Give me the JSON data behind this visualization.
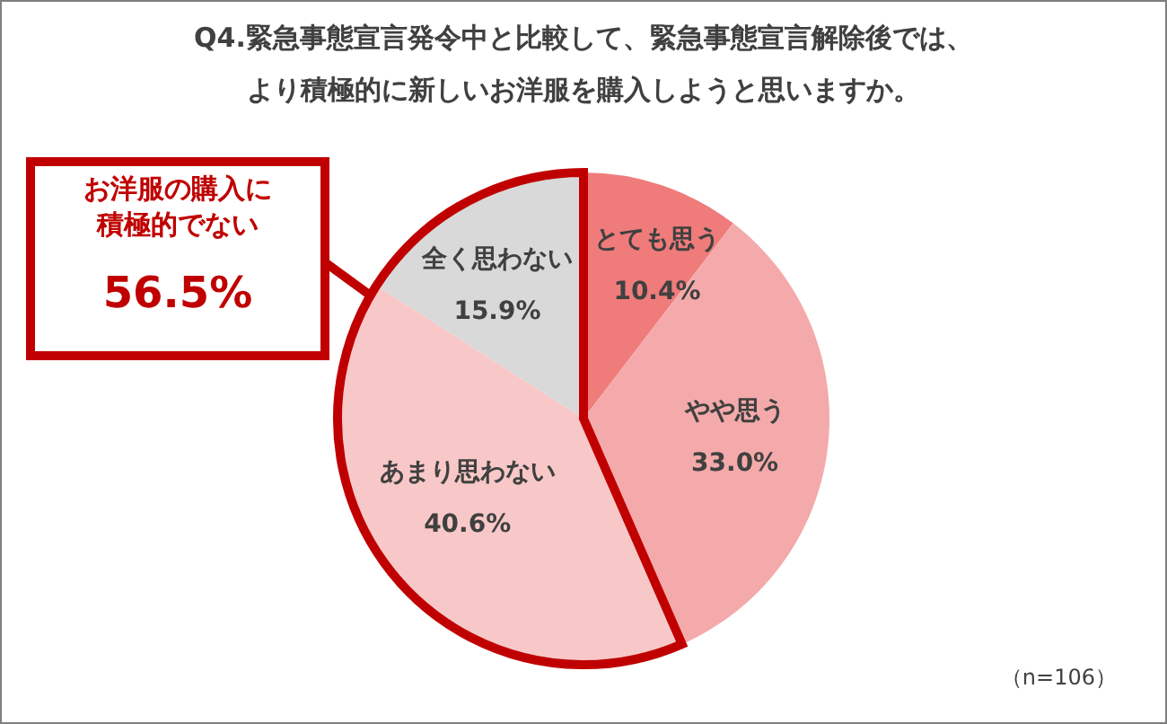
{
  "chart_data": {
    "type": "pie",
    "title": "Q4.緊急事態宣言発令中と比較して、緊急事態宣言解除後では、より積極的に新しいお洋服を購入しようと思いますか。",
    "categories": [
      "とても思う",
      "やや思う",
      "あまり思わない",
      "全く思わない"
    ],
    "values": [
      10.4,
      33.0,
      40.6,
      15.9
    ],
    "colors": [
      "#f07b7b",
      "#f4aaaa",
      "#f8c8c8",
      "#d9d9d9"
    ],
    "value_labels": [
      "10.4%",
      "33.0%",
      "40.6%",
      "15.9%"
    ],
    "annotations": [
      "お洋服の購入に積極的でない",
      "56.5%",
      "（n=106）"
    ]
  }
}
